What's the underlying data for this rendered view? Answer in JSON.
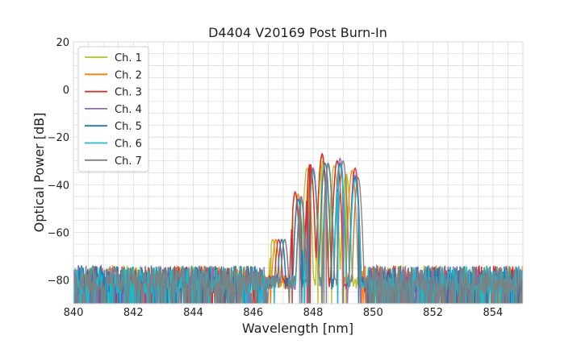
{
  "chart_data": {
    "type": "line",
    "title": "D4404 V20169 Post Burn-In",
    "xlabel": "Wavelength [nm]",
    "ylabel": "Optical Power [dB]",
    "xlim": [
      840,
      855
    ],
    "ylim": [
      -90,
      20
    ],
    "xticks": [
      840,
      842,
      844,
      846,
      848,
      850,
      852,
      854
    ],
    "yticks": [
      20,
      0,
      -20,
      -40,
      -60,
      -80
    ],
    "grid": true,
    "legend_position": "top-left",
    "noise_floor_db": -80,
    "series": [
      {
        "name": "Ch. 1",
        "color": "#bcbd22",
        "band": [
          846.1,
          849.6
        ],
        "peaks": [
          {
            "x": 847.4,
            "y": -44
          },
          {
            "x": 847.8,
            "y": -33
          },
          {
            "x": 848.3,
            "y": -30
          },
          {
            "x": 848.7,
            "y": -32
          },
          {
            "x": 849.1,
            "y": -35
          }
        ]
      },
      {
        "name": "Ch. 2",
        "color": "#ff7f0e",
        "band": [
          846.2,
          849.6
        ],
        "peaks": [
          {
            "x": 847.5,
            "y": -44
          },
          {
            "x": 847.9,
            "y": -32
          },
          {
            "x": 848.3,
            "y": -28
          },
          {
            "x": 848.8,
            "y": -30
          },
          {
            "x": 849.3,
            "y": -34
          }
        ]
      },
      {
        "name": "Ch. 3",
        "color": "#d62728",
        "band": [
          846.3,
          849.7
        ],
        "peaks": [
          {
            "x": 847.4,
            "y": -43
          },
          {
            "x": 847.9,
            "y": -31
          },
          {
            "x": 848.3,
            "y": -27
          },
          {
            "x": 848.8,
            "y": -30
          },
          {
            "x": 849.4,
            "y": -33
          }
        ]
      },
      {
        "name": "Ch. 4",
        "color": "#9467bd",
        "band": [
          846.4,
          849.8
        ],
        "peaks": [
          {
            "x": 847.6,
            "y": -45
          },
          {
            "x": 848.0,
            "y": -33
          },
          {
            "x": 848.5,
            "y": -31
          },
          {
            "x": 848.9,
            "y": -29
          },
          {
            "x": 849.4,
            "y": -36
          }
        ]
      },
      {
        "name": "Ch. 5",
        "color": "#1f77b4",
        "band": [
          846.4,
          849.8
        ],
        "peaks": [
          {
            "x": 847.5,
            "y": -46
          },
          {
            "x": 848.0,
            "y": -34
          },
          {
            "x": 848.4,
            "y": -31
          },
          {
            "x": 848.9,
            "y": -31
          },
          {
            "x": 849.4,
            "y": -37
          }
        ]
      },
      {
        "name": "Ch. 6",
        "color": "#17becf",
        "band": [
          846.5,
          849.8
        ],
        "peaks": [
          {
            "x": 847.6,
            "y": -47
          },
          {
            "x": 848.0,
            "y": -35
          },
          {
            "x": 848.5,
            "y": -32
          },
          {
            "x": 848.9,
            "y": -32
          },
          {
            "x": 849.4,
            "y": -38
          }
        ]
      },
      {
        "name": "Ch. 7",
        "color": "#7f7f7f",
        "band": [
          846.5,
          849.8
        ],
        "peaks": [
          {
            "x": 847.6,
            "y": -46
          },
          {
            "x": 848.0,
            "y": -34
          },
          {
            "x": 848.5,
            "y": -31
          },
          {
            "x": 849.0,
            "y": -30
          },
          {
            "x": 849.5,
            "y": -37
          }
        ]
      }
    ]
  }
}
